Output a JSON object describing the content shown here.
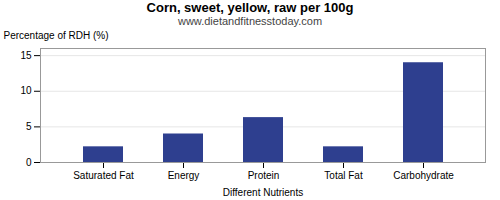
{
  "chart_data": {
    "type": "bar",
    "title": "Corn, sweet, yellow, raw per 100g",
    "subtitle": "www.dietandfitnesstoday.com",
    "xlabel": "Different Nutrients",
    "ylabel": "Percentage of RDH (%)",
    "categories": [
      "Saturated Fat",
      "Energy",
      "Protein",
      "Total Fat",
      "Carbohydrate"
    ],
    "values": [
      2.2,
      4.0,
      6.3,
      2.2,
      14.0
    ],
    "color": "#2e3f8f",
    "ylim": [
      0,
      16
    ],
    "yticks": [
      0,
      5,
      10,
      15
    ],
    "grid": true
  }
}
